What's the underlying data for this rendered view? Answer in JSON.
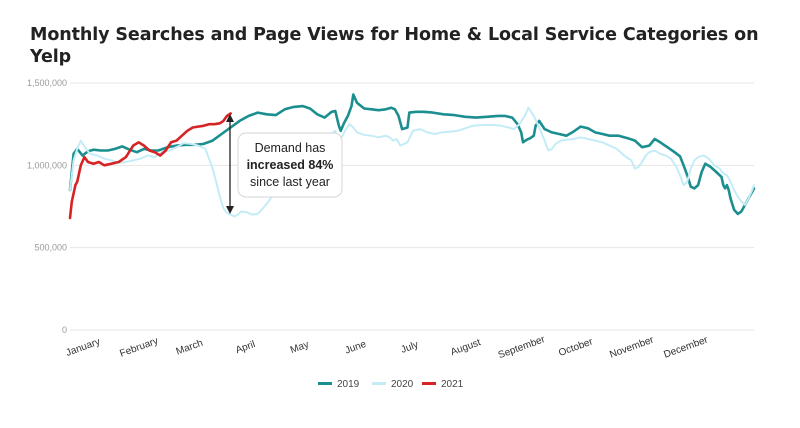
{
  "chart_data": {
    "type": "line",
    "title": "Monthly Searches and Page Views for Home & Local Service Categories on Yelp",
    "xlabel": "",
    "ylabel": "",
    "ylim": [
      0,
      1500000
    ],
    "yticks": [
      0,
      500000,
      1000000,
      1500000
    ],
    "ytick_labels": [
      "0",
      "500,000",
      "1,000,000",
      "1,500,000"
    ],
    "x_unit": "day of year",
    "xlim": [
      1,
      365
    ],
    "months": [
      {
        "label": "January",
        "day": 1
      },
      {
        "label": "February",
        "day": 32
      },
      {
        "label": "March",
        "day": 60
      },
      {
        "label": "April",
        "day": 91
      },
      {
        "label": "May",
        "day": 121
      },
      {
        "label": "June",
        "day": 152
      },
      {
        "label": "July",
        "day": 182
      },
      {
        "label": "August",
        "day": 213
      },
      {
        "label": "September",
        "day": 244
      },
      {
        "label": "October",
        "day": 274
      },
      {
        "label": "November",
        "day": 305
      },
      {
        "label": "December",
        "day": 335
      }
    ],
    "grid": true,
    "legend_position": "bottom",
    "series": [
      {
        "name": "2019",
        "color": "#1b8f8f",
        "points": [
          [
            1,
            850000
          ],
          [
            3,
            1070000
          ],
          [
            5,
            1100000
          ],
          [
            8,
            1060000
          ],
          [
            11,
            1085000
          ],
          [
            14,
            1095000
          ],
          [
            18,
            1090000
          ],
          [
            22,
            1090000
          ],
          [
            26,
            1100000
          ],
          [
            30,
            1115000
          ],
          [
            34,
            1095000
          ],
          [
            38,
            1080000
          ],
          [
            42,
            1100000
          ],
          [
            46,
            1090000
          ],
          [
            50,
            1090000
          ],
          [
            55,
            1110000
          ],
          [
            60,
            1120000
          ],
          [
            65,
            1125000
          ],
          [
            70,
            1125000
          ],
          [
            75,
            1130000
          ],
          [
            80,
            1150000
          ],
          [
            85,
            1190000
          ],
          [
            90,
            1230000
          ],
          [
            95,
            1270000
          ],
          [
            100,
            1300000
          ],
          [
            105,
            1320000
          ],
          [
            110,
            1310000
          ],
          [
            115,
            1305000
          ],
          [
            120,
            1340000
          ],
          [
            125,
            1355000
          ],
          [
            130,
            1360000
          ],
          [
            134,
            1345000
          ],
          [
            138,
            1310000
          ],
          [
            142,
            1290000
          ],
          [
            146,
            1325000
          ],
          [
            148,
            1330000
          ],
          [
            150,
            1240000
          ],
          [
            151,
            1210000
          ],
          [
            153,
            1260000
          ],
          [
            155,
            1300000
          ],
          [
            157,
            1360000
          ],
          [
            158,
            1430000
          ],
          [
            160,
            1380000
          ],
          [
            164,
            1345000
          ],
          [
            168,
            1340000
          ],
          [
            172,
            1335000
          ],
          [
            176,
            1340000
          ],
          [
            179,
            1350000
          ],
          [
            181,
            1340000
          ],
          [
            183,
            1300000
          ],
          [
            185,
            1220000
          ],
          [
            188,
            1230000
          ],
          [
            189,
            1320000
          ],
          [
            193,
            1325000
          ],
          [
            197,
            1325000
          ],
          [
            202,
            1320000
          ],
          [
            208,
            1310000
          ],
          [
            214,
            1305000
          ],
          [
            220,
            1295000
          ],
          [
            226,
            1290000
          ],
          [
            232,
            1295000
          ],
          [
            238,
            1300000
          ],
          [
            242,
            1300000
          ],
          [
            246,
            1290000
          ],
          [
            249,
            1250000
          ],
          [
            251,
            1200000
          ],
          [
            252,
            1140000
          ],
          [
            254,
            1155000
          ],
          [
            256,
            1165000
          ],
          [
            258,
            1180000
          ],
          [
            259,
            1240000
          ],
          [
            261,
            1270000
          ],
          [
            264,
            1220000
          ],
          [
            268,
            1200000
          ],
          [
            272,
            1190000
          ],
          [
            276,
            1180000
          ],
          [
            280,
            1205000
          ],
          [
            284,
            1235000
          ],
          [
            288,
            1225000
          ],
          [
            292,
            1200000
          ],
          [
            296,
            1190000
          ],
          [
            300,
            1180000
          ],
          [
            305,
            1180000
          ],
          [
            310,
            1165000
          ],
          [
            314,
            1150000
          ],
          [
            318,
            1110000
          ],
          [
            322,
            1120000
          ],
          [
            325,
            1160000
          ],
          [
            328,
            1140000
          ],
          [
            332,
            1110000
          ],
          [
            336,
            1080000
          ],
          [
            339,
            1055000
          ],
          [
            341,
            1000000
          ],
          [
            343,
            940000
          ],
          [
            345,
            870000
          ],
          [
            347,
            860000
          ],
          [
            349,
            880000
          ],
          [
            351,
            960000
          ],
          [
            353,
            1010000
          ],
          [
            356,
            990000
          ],
          [
            359,
            960000
          ],
          [
            362,
            930000
          ],
          [
            363,
            880000
          ],
          [
            364,
            860000
          ],
          [
            365,
            880000
          ],
          [
            366,
            850000
          ],
          [
            367,
            800000
          ],
          [
            369,
            730000
          ],
          [
            371,
            705000
          ],
          [
            373,
            720000
          ],
          [
            375,
            760000
          ],
          [
            377,
            800000
          ],
          [
            379,
            840000
          ],
          [
            380,
            860000
          ]
        ]
      },
      {
        "name": "2020",
        "color": "#c4ecf7",
        "points": [
          [
            1,
            850000
          ],
          [
            3,
            1030000
          ],
          [
            5,
            1100000
          ],
          [
            7,
            1150000
          ],
          [
            9,
            1115000
          ],
          [
            12,
            1070000
          ],
          [
            16,
            1060000
          ],
          [
            20,
            1040000
          ],
          [
            24,
            1030000
          ],
          [
            28,
            1015000
          ],
          [
            32,
            1020000
          ],
          [
            36,
            1030000
          ],
          [
            40,
            1040000
          ],
          [
            44,
            1060000
          ],
          [
            48,
            1050000
          ],
          [
            52,
            1080000
          ],
          [
            56,
            1090000
          ],
          [
            60,
            1110000
          ],
          [
            64,
            1135000
          ],
          [
            68,
            1130000
          ],
          [
            72,
            1120000
          ],
          [
            76,
            1100000
          ],
          [
            78,
            1040000
          ],
          [
            80,
            980000
          ],
          [
            82,
            900000
          ],
          [
            84,
            810000
          ],
          [
            86,
            740000
          ],
          [
            88,
            710000
          ],
          [
            90,
            700000
          ],
          [
            92,
            690000
          ],
          [
            94,
            700000
          ],
          [
            96,
            720000
          ],
          [
            99,
            715000
          ],
          [
            102,
            700000
          ],
          [
            105,
            705000
          ],
          [
            108,
            740000
          ],
          [
            111,
            780000
          ],
          [
            114,
            830000
          ],
          [
            117,
            890000
          ],
          [
            120,
            950000
          ],
          [
            124,
            1020000
          ],
          [
            128,
            1070000
          ],
          [
            132,
            1100000
          ],
          [
            136,
            1130000
          ],
          [
            140,
            1150000
          ],
          [
            144,
            1180000
          ],
          [
            148,
            1210000
          ],
          [
            150,
            1150000
          ],
          [
            152,
            1180000
          ],
          [
            154,
            1220000
          ],
          [
            156,
            1250000
          ],
          [
            158,
            1230000
          ],
          [
            160,
            1200000
          ],
          [
            164,
            1185000
          ],
          [
            168,
            1180000
          ],
          [
            172,
            1170000
          ],
          [
            176,
            1180000
          ],
          [
            178,
            1170000
          ],
          [
            180,
            1150000
          ],
          [
            182,
            1160000
          ],
          [
            184,
            1120000
          ],
          [
            186,
            1130000
          ],
          [
            188,
            1140000
          ],
          [
            191,
            1210000
          ],
          [
            195,
            1220000
          ],
          [
            199,
            1200000
          ],
          [
            203,
            1190000
          ],
          [
            207,
            1200000
          ],
          [
            212,
            1205000
          ],
          [
            216,
            1210000
          ],
          [
            220,
            1225000
          ],
          [
            224,
            1240000
          ],
          [
            230,
            1245000
          ],
          [
            236,
            1245000
          ],
          [
            240,
            1240000
          ],
          [
            244,
            1230000
          ],
          [
            247,
            1220000
          ],
          [
            250,
            1250000
          ],
          [
            253,
            1300000
          ],
          [
            255,
            1350000
          ],
          [
            258,
            1300000
          ],
          [
            261,
            1230000
          ],
          [
            264,
            1150000
          ],
          [
            266,
            1090000
          ],
          [
            268,
            1100000
          ],
          [
            270,
            1130000
          ],
          [
            273,
            1150000
          ],
          [
            276,
            1155000
          ],
          [
            280,
            1160000
          ],
          [
            284,
            1170000
          ],
          [
            288,
            1160000
          ],
          [
            292,
            1150000
          ],
          [
            296,
            1140000
          ],
          [
            300,
            1120000
          ],
          [
            304,
            1100000
          ],
          [
            308,
            1060000
          ],
          [
            312,
            1030000
          ],
          [
            314,
            980000
          ],
          [
            316,
            990000
          ],
          [
            318,
            1020000
          ],
          [
            320,
            1060000
          ],
          [
            322,
            1080000
          ],
          [
            325,
            1090000
          ],
          [
            328,
            1070000
          ],
          [
            331,
            1060000
          ],
          [
            334,
            1040000
          ],
          [
            337,
            990000
          ],
          [
            339,
            940000
          ],
          [
            341,
            880000
          ],
          [
            343,
            900000
          ],
          [
            345,
            980000
          ],
          [
            347,
            1030000
          ],
          [
            349,
            1050000
          ],
          [
            352,
            1060000
          ],
          [
            355,
            1040000
          ],
          [
            358,
            1000000
          ],
          [
            361,
            980000
          ],
          [
            363,
            950000
          ],
          [
            365,
            940000
          ],
          [
            367,
            900000
          ],
          [
            369,
            850000
          ],
          [
            371,
            810000
          ],
          [
            373,
            780000
          ],
          [
            375,
            760000
          ],
          [
            377,
            800000
          ],
          [
            379,
            850000
          ],
          [
            380,
            880000
          ]
        ]
      },
      {
        "name": "2021",
        "color": "#d62424",
        "points": [
          [
            1,
            680000
          ],
          [
            2,
            780000
          ],
          [
            4,
            880000
          ],
          [
            5,
            900000
          ],
          [
            7,
            1000000
          ],
          [
            9,
            1050000
          ],
          [
            11,
            1020000
          ],
          [
            14,
            1010000
          ],
          [
            17,
            1020000
          ],
          [
            20,
            1000000
          ],
          [
            24,
            1010000
          ],
          [
            28,
            1020000
          ],
          [
            32,
            1050000
          ],
          [
            36,
            1120000
          ],
          [
            39,
            1140000
          ],
          [
            42,
            1120000
          ],
          [
            45,
            1090000
          ],
          [
            48,
            1080000
          ],
          [
            51,
            1060000
          ],
          [
            54,
            1090000
          ],
          [
            57,
            1140000
          ],
          [
            60,
            1150000
          ],
          [
            63,
            1180000
          ],
          [
            66,
            1210000
          ],
          [
            69,
            1230000
          ],
          [
            72,
            1235000
          ],
          [
            75,
            1240000
          ],
          [
            78,
            1250000
          ],
          [
            81,
            1250000
          ],
          [
            84,
            1255000
          ],
          [
            86,
            1270000
          ],
          [
            88,
            1300000
          ],
          [
            90,
            1315000
          ]
        ]
      }
    ],
    "annotation": {
      "line1": "Demand has",
      "line2_bold": "increased 84%",
      "line3": "since last year"
    }
  }
}
